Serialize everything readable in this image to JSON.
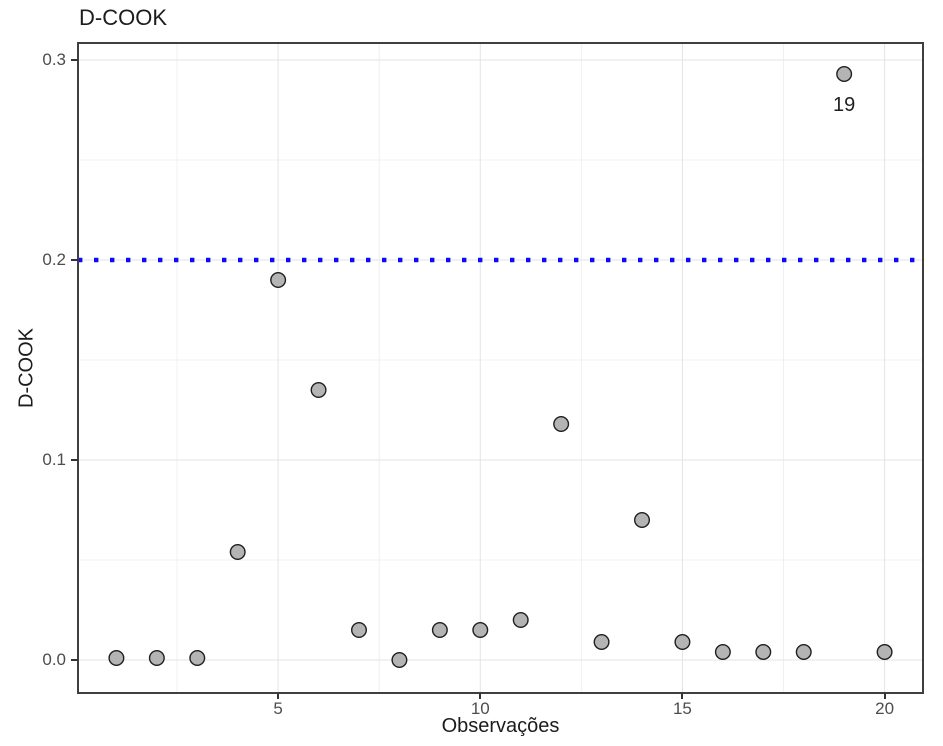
{
  "title": "D-COOK",
  "chart_data": {
    "type": "scatter",
    "title": "D-COOK",
    "xlabel": "Observações",
    "ylabel": "D-COOK",
    "x": [
      1,
      2,
      3,
      4,
      5,
      6,
      7,
      8,
      9,
      10,
      11,
      12,
      13,
      14,
      15,
      16,
      17,
      18,
      19,
      20
    ],
    "y": [
      0.001,
      0.001,
      0.001,
      0.054,
      0.19,
      0.135,
      0.015,
      0.0,
      0.015,
      0.015,
      0.02,
      0.118,
      0.009,
      0.07,
      0.009,
      0.004,
      0.004,
      0.004,
      0.293,
      0.004
    ],
    "xlim": [
      0.05,
      20.95
    ],
    "ylim": [
      -0.0165,
      0.3085
    ],
    "x_major_ticks": [
      5,
      10,
      15,
      20
    ],
    "x_tick_labels": [
      "5",
      "10",
      "15",
      "20"
    ],
    "x_minor_ticks": [
      2.5,
      7.5,
      12.5,
      17.5
    ],
    "y_major_ticks": [
      0,
      0.1,
      0.2,
      0.3
    ],
    "y_tick_labels": [
      "0.0",
      "0.1",
      "0.2",
      "0.3"
    ],
    "y_minor_ticks": [
      0.05,
      0.15,
      0.25
    ],
    "grid": "major-and-minor",
    "legend": "none",
    "threshold_line": {
      "y": 0.2,
      "color": "#0d0dee",
      "pattern": "dotted"
    },
    "annotation": {
      "text": "19",
      "x": 19,
      "y": 0.293
    },
    "point_style": {
      "fill": "#b4b4b4",
      "stroke": "#1f1f1f",
      "radius": 7.3,
      "stroke_width": 1.4
    }
  },
  "style": {
    "background": "#ffffff",
    "panel_background": "#ffffff",
    "panel_border": "#3f3f3f",
    "grid_major": "#e3e3e3",
    "grid_minor": "#f0f0f0",
    "tick_color": "#333333",
    "tick_label_color": "#4d4d4d",
    "title_color": "#1c1c1c",
    "annotation_color": "#1f1f1f"
  }
}
